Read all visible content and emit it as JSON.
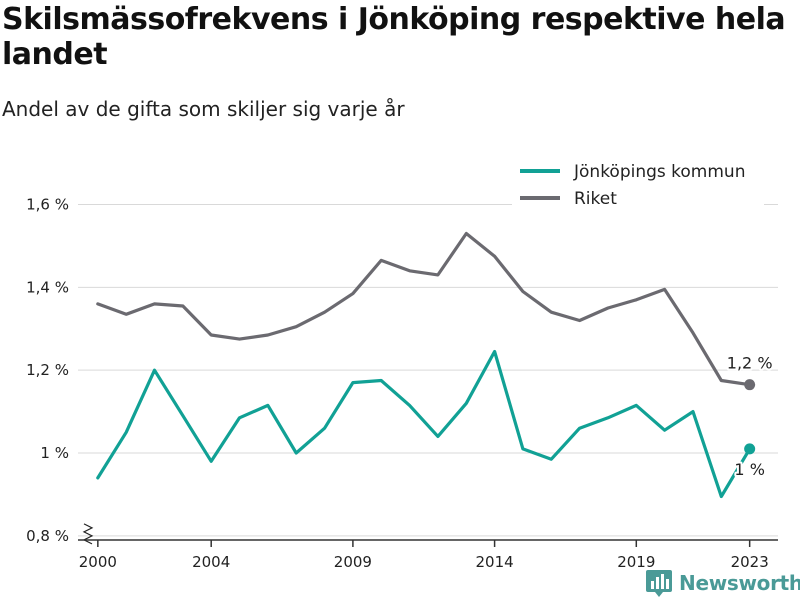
{
  "title": "Skilsmässofrekvens i Jönköping respektive hela landet",
  "subtitle": "Andel av de gifta som skiljer sig varje år",
  "brand": "Newsworthy",
  "chart_data": {
    "type": "line",
    "title": "Skilsmässofrekvens i Jönköping respektive hela landet",
    "subtitle": "Andel av de gifta som skiljer sig varje år",
    "x": [
      2000,
      2001,
      2002,
      2003,
      2004,
      2005,
      2006,
      2007,
      2008,
      2009,
      2010,
      2011,
      2012,
      2013,
      2014,
      2015,
      2016,
      2017,
      2018,
      2019,
      2020,
      2021,
      2022,
      2023
    ],
    "x_ticks": [
      2000,
      2004,
      2009,
      2014,
      2019,
      2023
    ],
    "y_ticks": [
      0.8,
      1.0,
      1.2,
      1.4,
      1.6
    ],
    "y_tick_labels": [
      "0,8 %",
      "1 %",
      "1,2 %",
      "1,4 %",
      "1,6 %"
    ],
    "ylim": [
      0.79,
      1.635
    ],
    "xlim": [
      1999.3,
      2024.0
    ],
    "grid": true,
    "legend_position": "top-right",
    "series": [
      {
        "name": "Jönköpings kommun",
        "color": "#11a195",
        "values": [
          0.94,
          1.05,
          1.2,
          1.09,
          0.98,
          1.085,
          1.115,
          1.0,
          1.06,
          1.17,
          1.175,
          1.115,
          1.04,
          1.12,
          1.245,
          1.01,
          0.985,
          1.06,
          1.085,
          1.115,
          1.055,
          1.1,
          0.895,
          1.01
        ],
        "end_label": "1 %"
      },
      {
        "name": "Riket",
        "color": "#6b6a70",
        "values": [
          1.36,
          1.335,
          1.36,
          1.355,
          1.285,
          1.275,
          1.285,
          1.305,
          1.34,
          1.385,
          1.465,
          1.44,
          1.43,
          1.53,
          1.475,
          1.39,
          1.34,
          1.32,
          1.35,
          1.37,
          1.395,
          1.29,
          1.175,
          1.165
        ],
        "end_label": "1,2 %"
      }
    ]
  }
}
